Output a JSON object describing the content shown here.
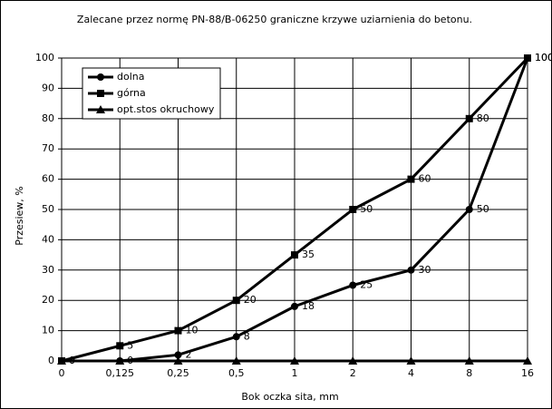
{
  "chart_data": {
    "type": "line",
    "title": "Zalecane przez normę PN-88/B-06250 graniczne krzywe uziarnienia do betonu.",
    "x_label": "Bok oczka sita, mm",
    "y_label": "Przesiew, %",
    "categories": [
      "0",
      "0,125",
      "0,25",
      "0,5",
      "1",
      "2",
      "4",
      "8",
      "16"
    ],
    "series": [
      {
        "name": "dolna",
        "color": "#000000",
        "marker": "circle",
        "values": [
          0,
          0,
          2,
          8,
          18,
          25,
          30,
          50,
          100
        ]
      },
      {
        "name": "górna",
        "color": "#000000",
        "marker": "square",
        "values": [
          0,
          5,
          10,
          20,
          35,
          50,
          60,
          80,
          100
        ]
      },
      {
        "name": "opt.stos okruchowy",
        "color": "#000000",
        "marker": "triangle",
        "values": [
          0,
          0,
          0,
          0,
          0,
          0,
          0,
          0,
          0
        ]
      }
    ],
    "ylim": [
      0,
      100
    ],
    "yticks": [
      0,
      10,
      20,
      30,
      40,
      50,
      60,
      70,
      80,
      90,
      100
    ],
    "grid": true,
    "legend": "upper left"
  }
}
